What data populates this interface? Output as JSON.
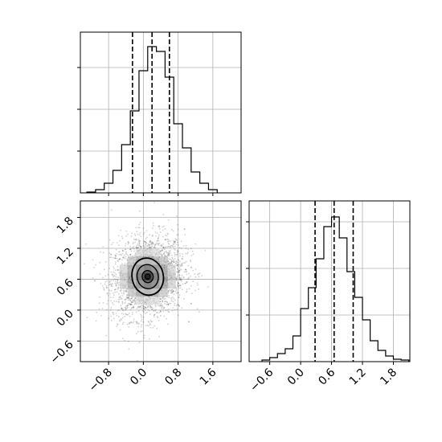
{
  "chart_data": [
    {
      "panel": "top-left",
      "type": "histogram",
      "variable": "x",
      "title": "",
      "xlabel": "",
      "ylabel": "",
      "xlim": [
        -1.45,
        2.25
      ],
      "ylim": [
        0,
        1.0
      ],
      "grid": true,
      "bin_edges": [
        -1.3,
        -1.1,
        -0.9,
        -0.7,
        -0.5,
        -0.3,
        -0.1,
        0.1,
        0.3,
        0.5,
        0.7,
        0.9,
        1.1,
        1.3,
        1.5,
        1.7
      ],
      "counts": [
        0.005,
        0.02,
        0.06,
        0.14,
        0.3,
        0.51,
        0.76,
        0.91,
        0.88,
        0.72,
        0.43,
        0.28,
        0.13,
        0.06,
        0.02
      ],
      "quantile_lines": [
        -0.25,
        0.2,
        0.6
      ]
    },
    {
      "panel": "bottom-left",
      "type": "scatter_density",
      "variables": [
        "x",
        "y"
      ],
      "title": "",
      "xlabel": "",
      "ylabel": "",
      "xlim": [
        -1.45,
        2.25
      ],
      "ylim": [
        -1.0,
        2.12
      ],
      "grid": true,
      "x_ticks": [
        "−0.8",
        "0.0",
        "0.8",
        "1.6"
      ],
      "x_tick_values": [
        -0.8,
        0.0,
        0.8,
        1.6
      ],
      "y_ticks": [
        "−0.6",
        "0.0",
        "0.6",
        "1.2",
        "1.8"
      ],
      "y_tick_values": [
        -0.6,
        0.0,
        0.6,
        1.2,
        1.8
      ],
      "center": [
        0.1,
        0.65
      ],
      "spread": [
        0.42,
        0.4
      ],
      "contour_levels": [
        {
          "rx": 0.86,
          "ry": 0.86,
          "rotate": -12
        },
        {
          "rx": 0.58,
          "ry": 0.56,
          "rotate": -12
        },
        {
          "rx": 0.3,
          "ry": 0.28,
          "rotate": -10
        },
        {
          "rx": 0.14,
          "ry": 0.12,
          "rotate": 0
        }
      ]
    },
    {
      "panel": "bottom-right",
      "type": "histogram",
      "variable": "y",
      "title": "",
      "xlabel": "",
      "ylabel": "",
      "xlim": [
        -1.0,
        2.12
      ],
      "ylim": [
        0,
        1.0
      ],
      "grid": true,
      "x_ticks": [
        "−0.6",
        "0.0",
        "0.6",
        "1.2",
        "1.8"
      ],
      "x_tick_values": [
        -0.6,
        0.0,
        0.6,
        1.2,
        1.8
      ],
      "bin_edges": [
        -0.75,
        -0.6,
        -0.45,
        -0.3,
        -0.15,
        0.0,
        0.15,
        0.3,
        0.45,
        0.6,
        0.75,
        0.9,
        1.05,
        1.2,
        1.35,
        1.5,
        1.65,
        1.8,
        1.95,
        2.1
      ],
      "counts": [
        0.01,
        0.025,
        0.05,
        0.08,
        0.16,
        0.33,
        0.46,
        0.64,
        0.84,
        0.9,
        0.77,
        0.56,
        0.4,
        0.26,
        0.13,
        0.07,
        0.035,
        0.015,
        0.01
      ],
      "quantile_lines": [
        0.28,
        0.65,
        1.02
      ]
    }
  ]
}
